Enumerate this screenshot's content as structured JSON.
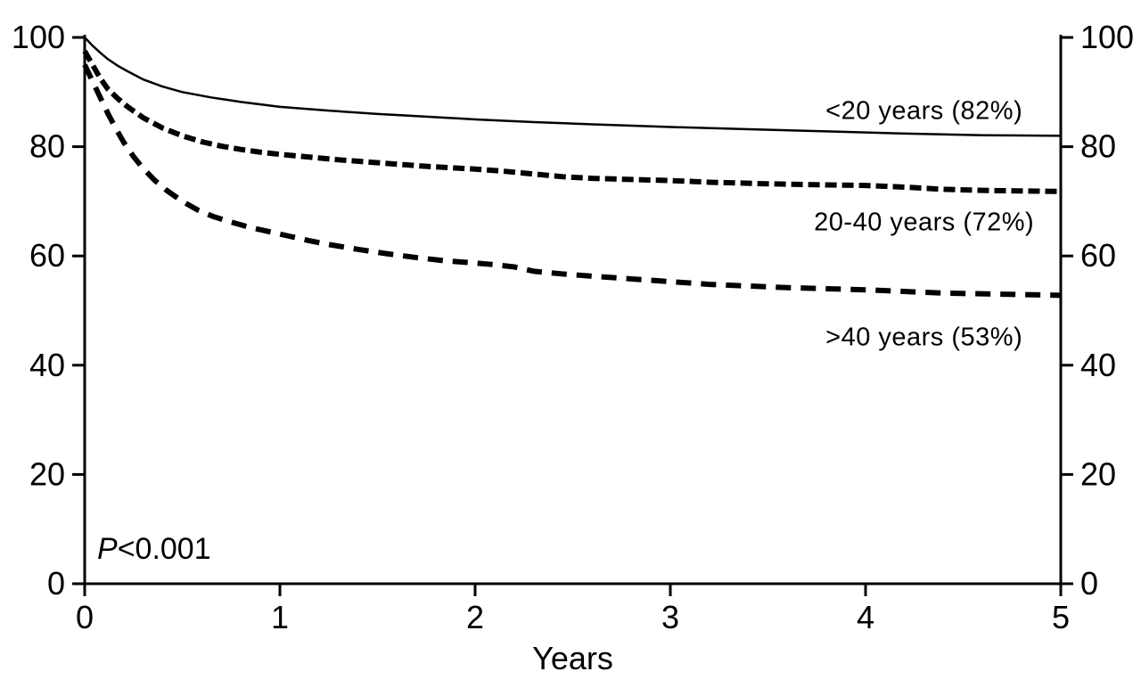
{
  "chart_data": {
    "type": "line",
    "title": "",
    "xlabel": "Years",
    "ylabel": "",
    "xlim": [
      0,
      5
    ],
    "ylim": [
      0,
      100
    ],
    "x_ticks": [
      "0",
      "1",
      "2",
      "3",
      "4",
      "5"
    ],
    "y_ticks": [
      "0",
      "20",
      "40",
      "60",
      "80",
      "100"
    ],
    "y_tick_values": [
      0,
      20,
      40,
      60,
      80,
      100
    ],
    "x_tick_values": [
      0,
      1,
      2,
      3,
      4,
      5
    ],
    "y_axis_sides": [
      "left",
      "right"
    ],
    "grid": false,
    "line_color": "#000000",
    "p_value": {
      "symbol": "P",
      "value": "<0.001"
    },
    "series": [
      {
        "name": "under-20-years",
        "label": "<20 years (82%)",
        "final_percent": 82,
        "line_style": "solid",
        "line_width": 2.5,
        "label_pos": {
          "x": 4.3,
          "y": 86.5
        },
        "points": [
          [
            0,
            100
          ],
          [
            0.04,
            98.5
          ],
          [
            0.08,
            97.2
          ],
          [
            0.12,
            96
          ],
          [
            0.17,
            94.8
          ],
          [
            0.22,
            93.8
          ],
          [
            0.3,
            92.3
          ],
          [
            0.4,
            91
          ],
          [
            0.5,
            90
          ],
          [
            0.65,
            89
          ],
          [
            0.8,
            88.2
          ],
          [
            1,
            87.3
          ],
          [
            1.25,
            86.6
          ],
          [
            1.5,
            86
          ],
          [
            1.75,
            85.5
          ],
          [
            2,
            85
          ],
          [
            2.3,
            84.5
          ],
          [
            2.6,
            84.1
          ],
          [
            3,
            83.6
          ],
          [
            3.4,
            83.2
          ],
          [
            3.8,
            82.8
          ],
          [
            4.2,
            82.4
          ],
          [
            4.6,
            82.1
          ],
          [
            5,
            82
          ]
        ]
      },
      {
        "name": "20-40-years",
        "label": "20-40 years (72%)",
        "final_percent": 72,
        "line_style": "dashed-tight",
        "line_width": 6,
        "label_pos": {
          "x": 4.3,
          "y": 66
        },
        "points": [
          [
            0,
            97.5
          ],
          [
            0.04,
            95
          ],
          [
            0.08,
            92.5
          ],
          [
            0.12,
            90.5
          ],
          [
            0.17,
            88.8
          ],
          [
            0.22,
            87.3
          ],
          [
            0.3,
            85.3
          ],
          [
            0.4,
            83.4
          ],
          [
            0.5,
            82
          ],
          [
            0.6,
            80.9
          ],
          [
            0.7,
            80.1
          ],
          [
            0.8,
            79.5
          ],
          [
            0.9,
            79
          ],
          [
            1,
            78.6
          ],
          [
            1.15,
            78.1
          ],
          [
            1.3,
            77.6
          ],
          [
            1.45,
            77.2
          ],
          [
            1.6,
            76.8
          ],
          [
            1.75,
            76.4
          ],
          [
            1.9,
            76.1
          ],
          [
            2,
            75.9
          ],
          [
            2.15,
            75.5
          ],
          [
            2.3,
            75
          ],
          [
            2.45,
            74.5
          ],
          [
            2.6,
            74.2
          ],
          [
            2.8,
            74
          ],
          [
            3,
            73.8
          ],
          [
            3.2,
            73.5
          ],
          [
            3.5,
            73.2
          ],
          [
            3.8,
            73
          ],
          [
            4,
            72.9
          ],
          [
            4.2,
            72.6
          ],
          [
            4.4,
            72.2
          ],
          [
            4.6,
            72
          ],
          [
            4.8,
            71.9
          ],
          [
            5,
            71.8
          ]
        ]
      },
      {
        "name": "over-40-years",
        "label": ">40 years (53%)",
        "final_percent": 53,
        "line_style": "dashed",
        "line_width": 6,
        "label_pos": {
          "x": 4.3,
          "y": 45
        },
        "points": [
          [
            0,
            95
          ],
          [
            0.04,
            92
          ],
          [
            0.08,
            89
          ],
          [
            0.12,
            86
          ],
          [
            0.16,
            83.3
          ],
          [
            0.2,
            80.8
          ],
          [
            0.25,
            78.2
          ],
          [
            0.3,
            76
          ],
          [
            0.36,
            73.8
          ],
          [
            0.42,
            72
          ],
          [
            0.5,
            70
          ],
          [
            0.58,
            68.4
          ],
          [
            0.66,
            67.2
          ],
          [
            0.75,
            66.2
          ],
          [
            0.85,
            65.2
          ],
          [
            0.95,
            64.4
          ],
          [
            1.05,
            63.6
          ],
          [
            1.15,
            62.8
          ],
          [
            1.25,
            62.1
          ],
          [
            1.4,
            61.2
          ],
          [
            1.55,
            60.4
          ],
          [
            1.7,
            59.7
          ],
          [
            1.85,
            59.1
          ],
          [
            2,
            58.7
          ],
          [
            2.1,
            58.4
          ],
          [
            2.2,
            58
          ],
          [
            2.3,
            57.2
          ],
          [
            2.45,
            56.7
          ],
          [
            2.6,
            56.3
          ],
          [
            2.8,
            55.8
          ],
          [
            3,
            55.3
          ],
          [
            3.2,
            54.8
          ],
          [
            3.4,
            54.5
          ],
          [
            3.6,
            54.2
          ],
          [
            3.8,
            54
          ],
          [
            4,
            53.8
          ],
          [
            4.2,
            53.5
          ],
          [
            4.4,
            53.2
          ],
          [
            4.7,
            53
          ],
          [
            5,
            52.8
          ]
        ]
      }
    ]
  }
}
